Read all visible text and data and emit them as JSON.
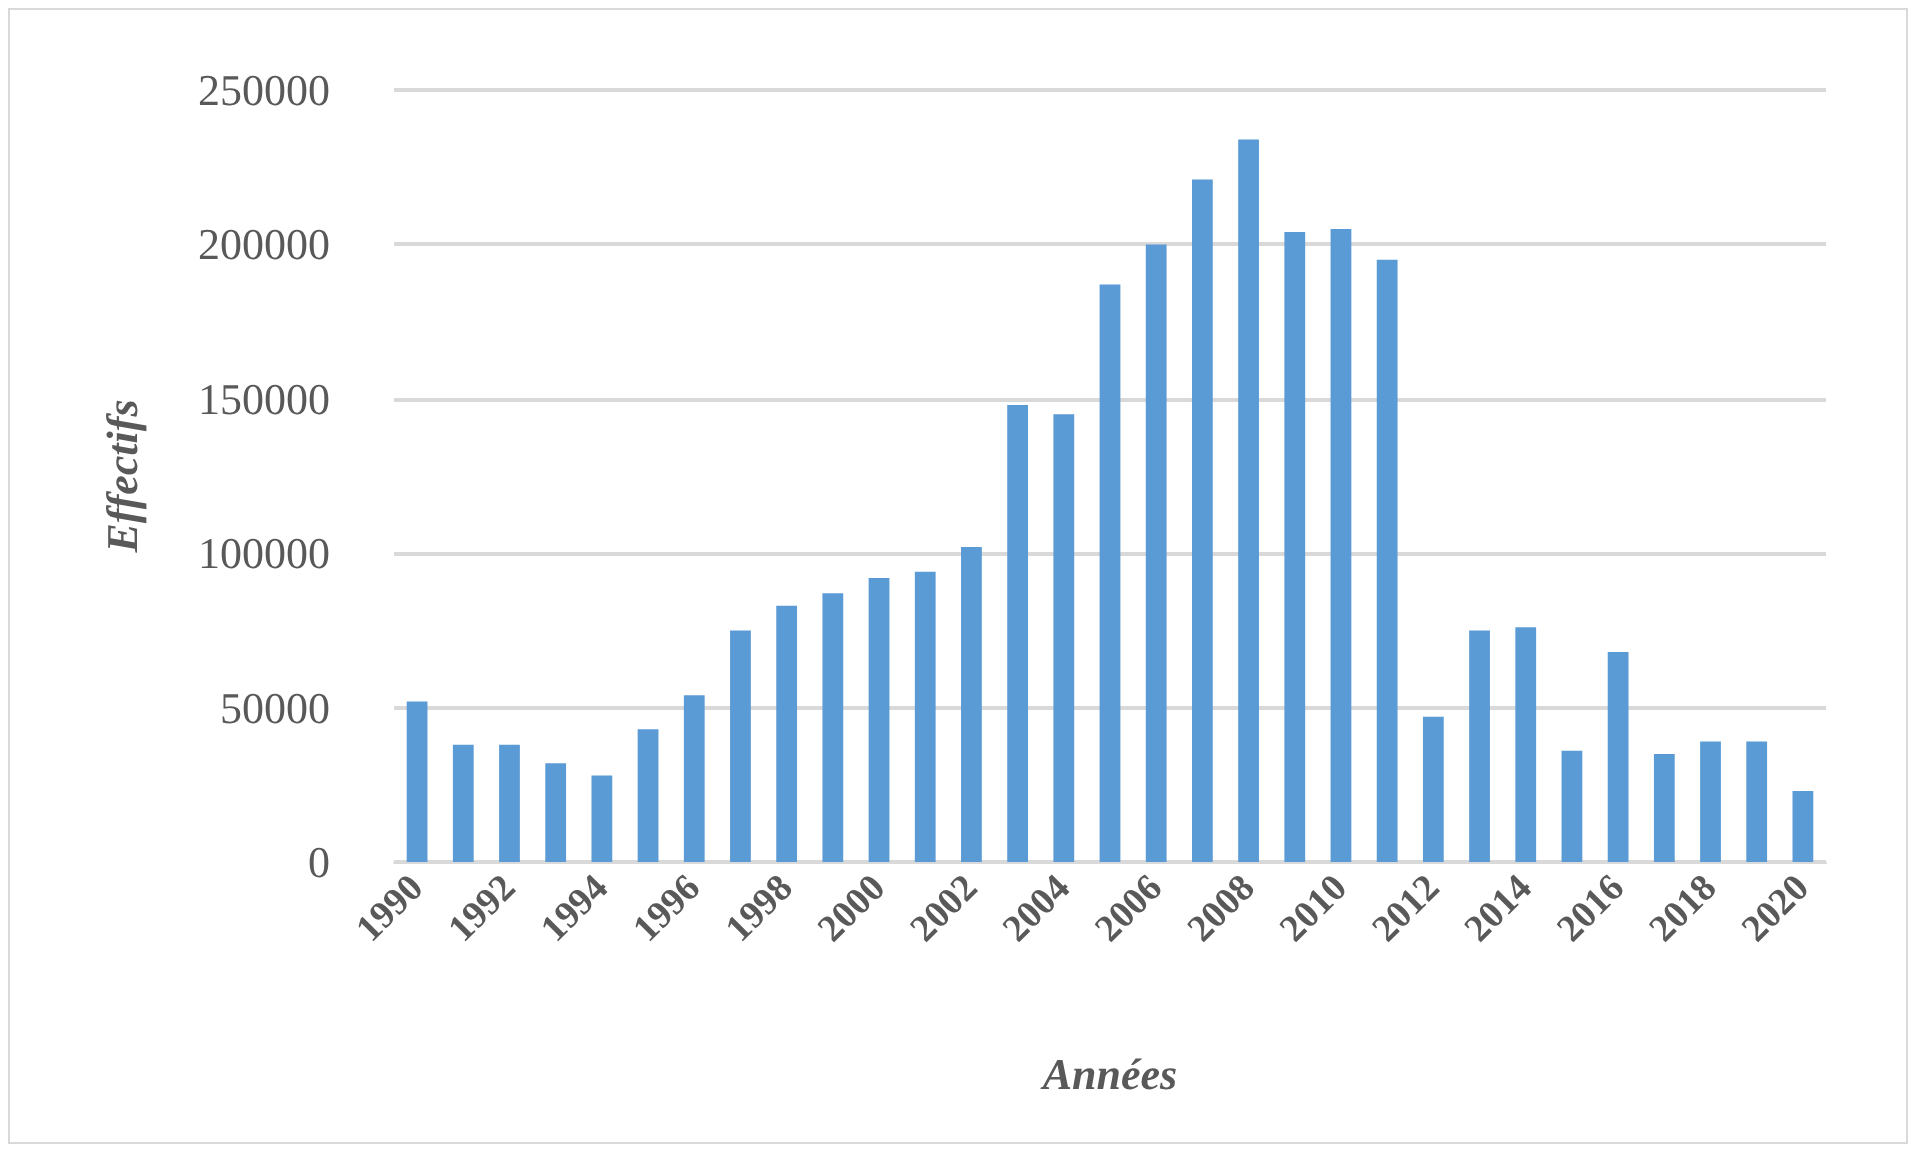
{
  "chart_data": {
    "type": "bar",
    "xlabel": "Années",
    "ylabel": "Effectifs",
    "categories": [
      "1990",
      null,
      "1992",
      null,
      "1994",
      null,
      "1996",
      null,
      "1998",
      null,
      "2000",
      null,
      "2002",
      null,
      "2004",
      null,
      "2006",
      null,
      "2008",
      null,
      "2010",
      null,
      "2012",
      null,
      "2014",
      null,
      "2016",
      null,
      "2018",
      null,
      "2020"
    ],
    "values": [
      52000,
      38000,
      38000,
      32000,
      28000,
      43000,
      54000,
      75000,
      83000,
      87000,
      92000,
      94000,
      102000,
      148000,
      145000,
      187000,
      200000,
      221000,
      234000,
      204000,
      205000,
      195000,
      47000,
      75000,
      76000,
      36000,
      68000,
      35000,
      39000,
      39000,
      23000
    ],
    "color": "#5b9bd5",
    "ylim": [
      0,
      250000
    ],
    "yticks": [
      0,
      50000,
      100000,
      150000,
      200000,
      250000
    ],
    "grid": "y"
  }
}
